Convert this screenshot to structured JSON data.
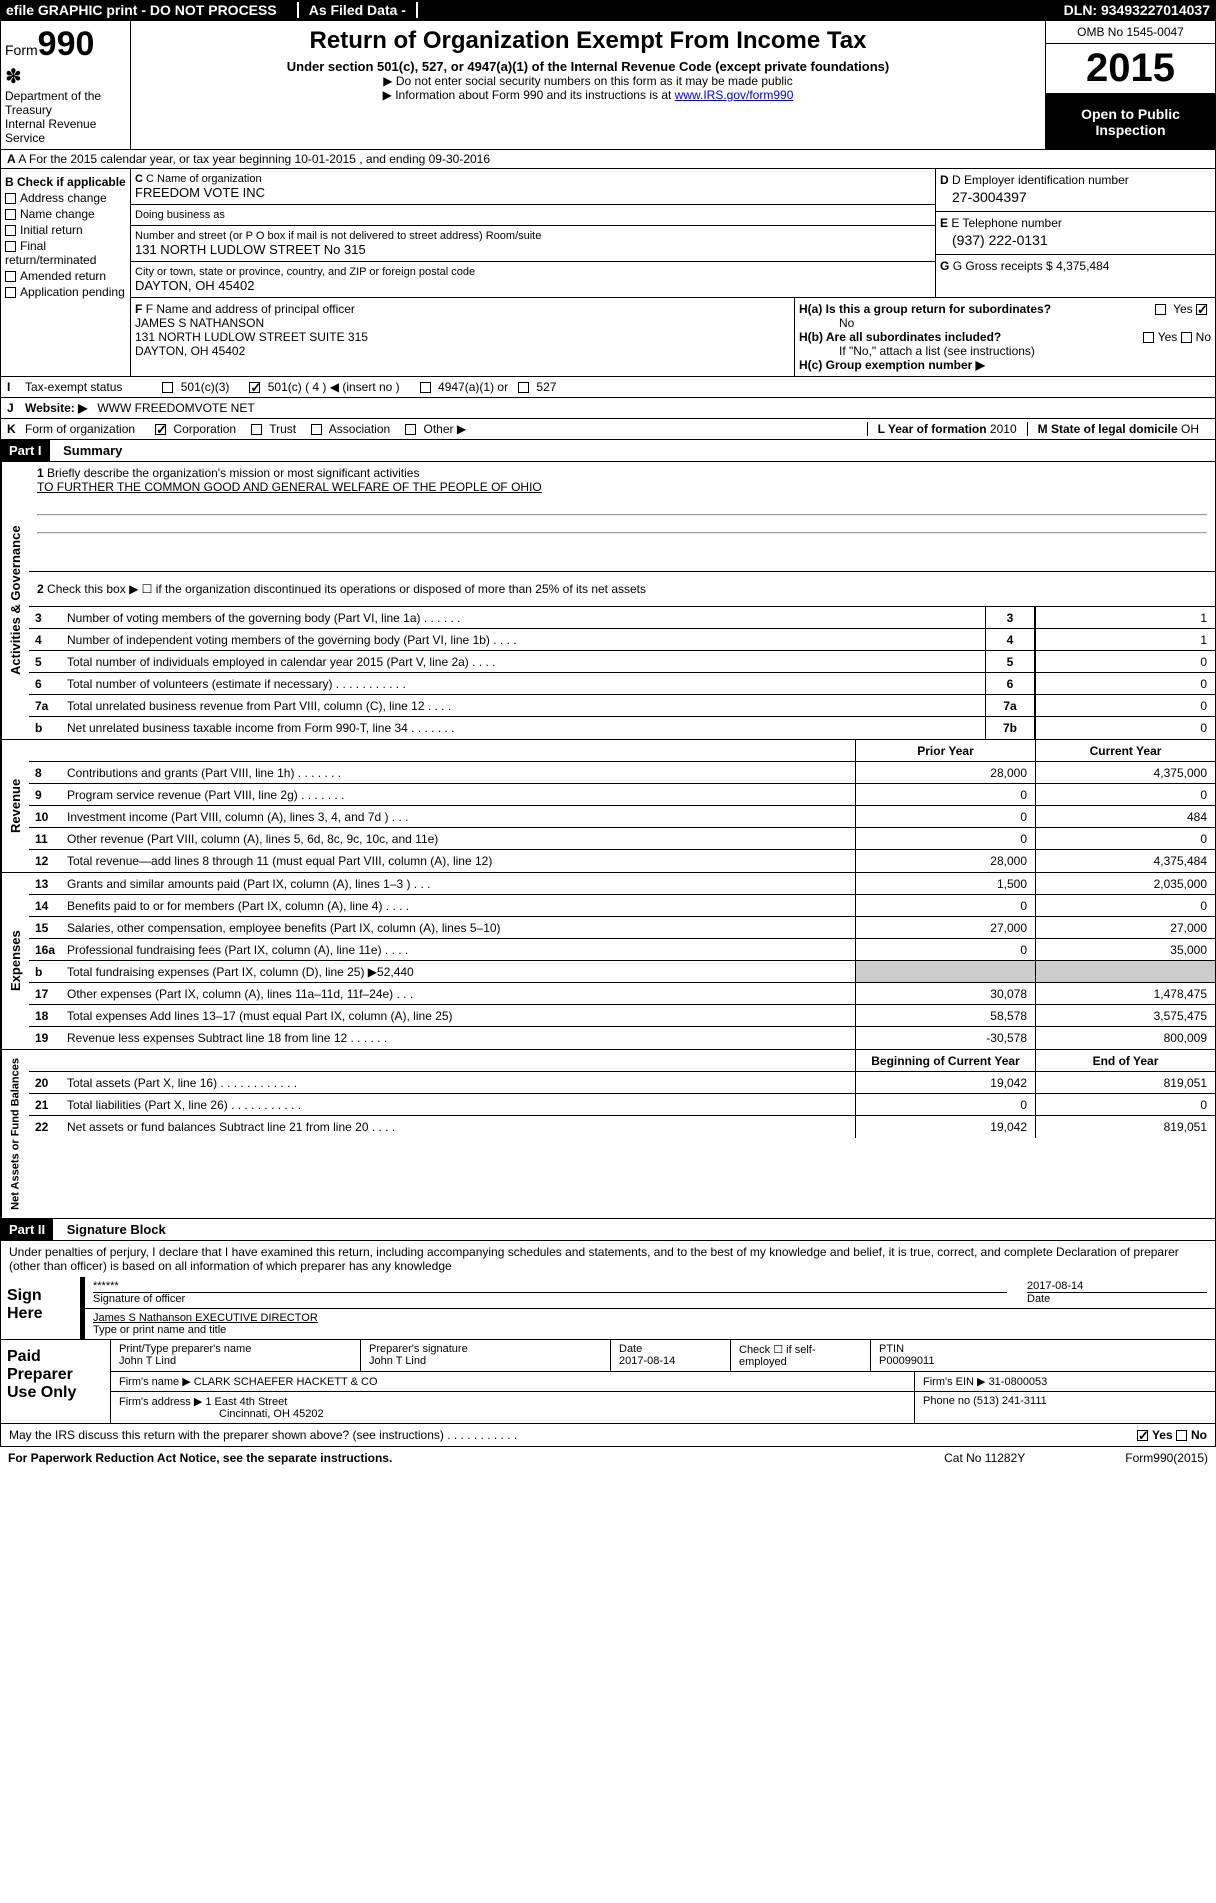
{
  "header_bar": {
    "left": "efile GRAPHIC print - DO NOT PROCESS",
    "center": "As Filed Data -",
    "right": "DLN: 93493227014037"
  },
  "form_top": {
    "form_label": "Form",
    "form_number": "990",
    "dept": "Department of the Treasury",
    "irs": "Internal Revenue Service",
    "title": "Return of Organization Exempt From Income Tax",
    "subtitle": "Under section 501(c), 527, or 4947(a)(1) of the Internal Revenue Code (except private foundations)",
    "note1": "▶ Do not enter social security numbers on this form as it may be made public",
    "note2_pre": "▶ Information about Form 990 and its instructions is at ",
    "note2_link": "www.IRS.gov/form990",
    "omb": "OMB No 1545-0047",
    "year": "2015",
    "inspection": "Open to Public Inspection"
  },
  "row_a": "A  For the 2015 calendar year, or tax year beginning 10-01-2015   , and ending 09-30-2016",
  "section_b": {
    "title": "B Check if applicable",
    "items": [
      "Address change",
      "Name change",
      "Initial return",
      "Final return/terminated",
      "Amended return",
      "Application pending"
    ]
  },
  "section_c": {
    "name_lbl": "C Name of organization",
    "name": "FREEDOM VOTE INC",
    "dba_lbl": "Doing business as",
    "dba": "",
    "street_lbl": "Number and street (or P O  box if mail is not delivered to street address)  Room/suite",
    "street": "131 NORTH LUDLOW STREET No 315",
    "city_lbl": "City or town, state or province, country, and ZIP or foreign postal code",
    "city": "DAYTON, OH  45402"
  },
  "section_d": {
    "ein_lbl": "D Employer identification number",
    "ein": "27-3004397",
    "phone_lbl": "E Telephone number",
    "phone": "(937) 222-0131",
    "gross_lbl": "G Gross receipts $",
    "gross": "4,375,484"
  },
  "section_f": {
    "lbl": "F Name and address of principal officer",
    "name": "JAMES S NATHANSON",
    "addr1": "131 NORTH LUDLOW STREET SUITE 315",
    "addr2": "DAYTON, OH  45402"
  },
  "section_h": {
    "ha": "H(a) Is this a group return for subordinates?",
    "ha_ans_no": "No",
    "ha_yes": "Yes",
    "hb": "H(b) Are all subordinates included?",
    "hb_yn": "Yes     No",
    "hb_note": "If \"No,\" attach a list (see instructions)",
    "hc": "H(c)  Group exemption number ▶"
  },
  "row_i": {
    "lbl": "I",
    "text": "Tax-exempt status",
    "opt1": "501(c)(3)",
    "opt2": "501(c) ( 4 ) ◀ (insert no )",
    "opt3": "4947(a)(1) or",
    "opt4": "527"
  },
  "row_j": {
    "lbl": "J",
    "text": "Website: ▶",
    "val": "WWW FREEDOMVOTE NET"
  },
  "row_k": {
    "lbl": "K",
    "text": "Form of organization",
    "opts": [
      "Corporation",
      "Trust",
      "Association",
      "Other ▶"
    ],
    "l_lbl": "L Year of formation",
    "l_val": "2010",
    "m_lbl": "M State of legal domicile",
    "m_val": "OH"
  },
  "part1": {
    "header": "Part I",
    "title": "Summary",
    "q1_lbl": "1",
    "q1": "Briefly describe the organization's mission or most significant activities",
    "q1_val": "TO FURTHER THE COMMON GOOD AND GENERAL WELFARE OF THE PEOPLE OF OHIO",
    "q2_lbl": "2",
    "q2": "Check this box ▶ ☐ if the organization discontinued its operations or disposed of more than 25% of its net assets",
    "governance_label": "Activities & Governance",
    "lines_gov": [
      {
        "num": "3",
        "desc": "Number of voting members of the governing body (Part VI, line 1a)  .  .  .  .  .  .",
        "box": "3",
        "val": "1"
      },
      {
        "num": "4",
        "desc": "Number of independent voting members of the governing body (Part VI, line 1b)  .  .  .  .",
        "box": "4",
        "val": "1"
      },
      {
        "num": "5",
        "desc": "Total number of individuals employed in calendar year 2015 (Part V, line 2a)  .  .  .  .",
        "box": "5",
        "val": "0"
      },
      {
        "num": "6",
        "desc": "Total number of volunteers (estimate if necessary)  .  .  .  .  .  .  .  .  .  .  .",
        "box": "6",
        "val": "0"
      },
      {
        "num": "7a",
        "desc": "Total unrelated business revenue from Part VIII, column (C), line 12  .  .  .  .",
        "box": "7a",
        "val": "0"
      },
      {
        "num": "b",
        "desc": "Net unrelated business taxable income from Form 990-T, line 34  .  .  .  .  .  .  .",
        "box": "7b",
        "val": "0"
      }
    ],
    "revenue_label": "Revenue",
    "prior_hdr": "Prior Year",
    "current_hdr": "Current Year",
    "lines_rev": [
      {
        "num": "8",
        "desc": "Contributions and grants (Part VIII, line 1h)  .  .  .  .  .  .  .",
        "v1": "28,000",
        "v2": "4,375,000"
      },
      {
        "num": "9",
        "desc": "Program service revenue (Part VIII, line 2g)  .  .  .  .  .  .  .",
        "v1": "0",
        "v2": "0"
      },
      {
        "num": "10",
        "desc": "Investment income (Part VIII, column (A), lines 3, 4, and 7d )  .  .  .",
        "v1": "0",
        "v2": "484"
      },
      {
        "num": "11",
        "desc": "Other revenue (Part VIII, column (A), lines 5, 6d, 8c, 9c, 10c, and 11e)",
        "v1": "0",
        "v2": "0"
      },
      {
        "num": "12",
        "desc": "Total revenue—add lines 8 through 11 (must equal Part VIII, column (A), line 12)",
        "v1": "28,000",
        "v2": "4,375,484"
      }
    ],
    "expenses_label": "Expenses",
    "lines_exp": [
      {
        "num": "13",
        "desc": "Grants and similar amounts paid (Part IX, column (A), lines 1–3 )  .  .  .",
        "v1": "1,500",
        "v2": "2,035,000"
      },
      {
        "num": "14",
        "desc": "Benefits paid to or for members (Part IX, column (A), line 4)  .  .  .  .",
        "v1": "0",
        "v2": "0"
      },
      {
        "num": "15",
        "desc": "Salaries, other compensation, employee benefits (Part IX, column (A), lines 5–10)",
        "v1": "27,000",
        "v2": "27,000"
      },
      {
        "num": "16a",
        "desc": "Professional fundraising fees (Part IX, column (A), line 11e)  .  .  .  .",
        "v1": "0",
        "v2": "35,000"
      },
      {
        "num": "b",
        "desc": "Total fundraising expenses (Part IX, column (D), line 25) ▶52,440",
        "v1": "",
        "v2": ""
      },
      {
        "num": "17",
        "desc": "Other expenses (Part IX, column (A), lines 11a–11d, 11f–24e)  .  .  .",
        "v1": "30,078",
        "v2": "1,478,475"
      },
      {
        "num": "18",
        "desc": "Total expenses  Add lines 13–17 (must equal Part IX, column (A), line 25)",
        "v1": "58,578",
        "v2": "3,575,475"
      },
      {
        "num": "19",
        "desc": "Revenue less expenses  Subtract line 18 from line 12  .  .  .  .  .  .",
        "v1": "-30,578",
        "v2": "800,009"
      }
    ],
    "netassets_label": "Net Assets or Fund Balances",
    "begin_hdr": "Beginning of Current Year",
    "end_hdr": "End of Year",
    "lines_na": [
      {
        "num": "20",
        "desc": "Total assets (Part X, line 16)  .  .  .  .  .  .  .  .  .  .  .  .",
        "v1": "19,042",
        "v2": "819,051"
      },
      {
        "num": "21",
        "desc": "Total liabilities (Part X, line 26)  .  .  .  .  .  .  .  .  .  .  .",
        "v1": "0",
        "v2": "0"
      },
      {
        "num": "22",
        "desc": "Net assets or fund balances  Subtract line 21 from line 20  .  .  .  .",
        "v1": "19,042",
        "v2": "819,051"
      }
    ]
  },
  "part2": {
    "header": "Part II",
    "title": "Signature Block",
    "intro": "Under penalties of perjury, I declare that I have examined this return, including accompanying schedules and statements, and to the best of my knowledge and belief, it is true, correct, and complete  Declaration of preparer (other than officer) is based on all information of which preparer has any knowledge",
    "sign_here": "Sign Here",
    "sig_stars": "******",
    "sig_date": "2017-08-14",
    "sig_officer_lbl": "Signature of officer",
    "date_lbl": "Date",
    "officer_name": "James S Nathanson  EXECUTIVE DIRECTOR",
    "officer_name_lbl": "Type or print name and title",
    "paid_prep": "Paid Preparer Use Only",
    "prep_name_lbl": "Print/Type preparer's name",
    "prep_name": "John T Lind",
    "prep_sig_lbl": "Preparer's signature",
    "prep_sig": "John T Lind",
    "prep_date_lbl": "Date",
    "prep_date": "2017-08-14",
    "self_emp": "Check ☐ if self-employed",
    "ptin_lbl": "PTIN",
    "ptin": "P00099011",
    "firm_name_lbl": "Firm's name    ▶",
    "firm_name": "CLARK SCHAEFER HACKETT & CO",
    "firm_ein_lbl": "Firm's EIN ▶",
    "firm_ein": "31-0800053",
    "firm_addr_lbl": "Firm's address ▶",
    "firm_addr1": "1 East 4th Street",
    "firm_addr2": "Cincinnati, OH  45202",
    "firm_phone_lbl": "Phone no",
    "firm_phone": "(513) 241-3111"
  },
  "footer": {
    "discuss": "May the IRS discuss this return with the preparer shown above? (see instructions)  .  .  .  .  .  .  .  .  .  .  .",
    "yes": "Yes",
    "no": "No",
    "paperwork": "For Paperwork Reduction Act Notice, see the separate instructions.",
    "cat": "Cat  No  11282Y",
    "form": "Form990(2015)"
  }
}
